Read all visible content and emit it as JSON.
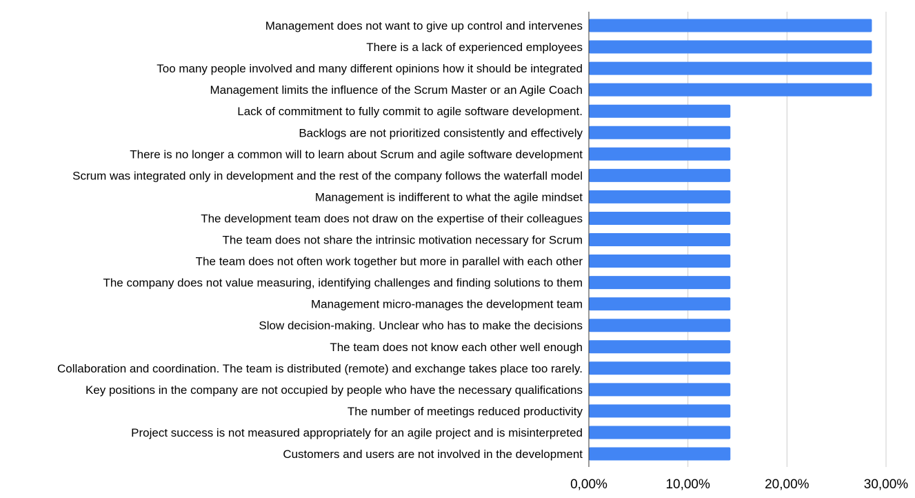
{
  "chart_data": {
    "type": "bar",
    "orientation": "horizontal",
    "title": "",
    "xlabel": "",
    "ylabel": "",
    "categories": [
      "Management does not want to give up control and intervenes",
      "There is a lack of experienced employees",
      "Too many people involved and many different opinions how it should be integrated",
      "Management limits the influence of the Scrum Master or an Agile Coach",
      "Lack of commitment to fully commit to agile software development.",
      "Backlogs are not prioritized consistently and effectively",
      "There is no longer a common will to learn about Scrum and agile software development",
      "Scrum was integrated only in development and the rest of the company follows the waterfall model",
      "Management is indifferent to what the agile mindset",
      "The development team does not draw on the expertise of their colleagues",
      "The team does not share the intrinsic motivation necessary for Scrum",
      "The team does not often work together but more in parallel with each other",
      "The company does not value measuring, identifying challenges and finding solutions to them",
      "Management micro-manages the development team",
      "Slow decision-making. Unclear who has to make the decisions",
      "The team does not know each other well enough",
      "Collaboration and coordination. The team is distributed (remote) and exchange takes place too rarely.",
      "Key positions in the company are not occupied by people who have the necessary qualifications",
      "The number of meetings reduced productivity",
      "Project success is not measured appropriately for an agile project and is misinterpreted",
      "Customers and users are not involved in the development"
    ],
    "values": [
      28.57,
      28.57,
      28.57,
      28.57,
      14.29,
      14.29,
      14.29,
      14.29,
      14.29,
      14.29,
      14.29,
      14.29,
      14.29,
      14.29,
      14.29,
      14.29,
      14.29,
      14.29,
      14.29,
      14.29,
      14.29
    ],
    "xlim": [
      0,
      30
    ],
    "x_ticks": [
      0,
      10,
      20,
      30
    ],
    "x_tick_labels": [
      "0,00%",
      "10,00%",
      "20,00%",
      "30,00%"
    ],
    "grid": true,
    "legend": "none",
    "bar_color": "#4285f4"
  }
}
